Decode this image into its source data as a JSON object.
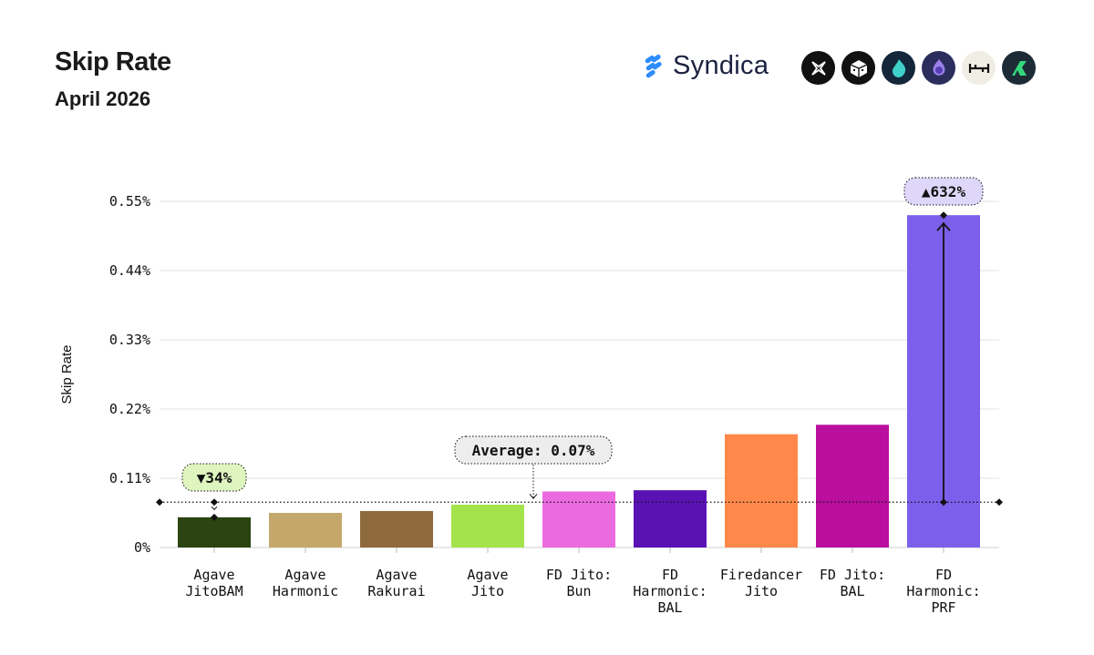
{
  "header": {
    "title": "Skip Rate",
    "subtitle": "April 2026",
    "brand": "Syndica"
  },
  "logos": [
    {
      "icon": "x-star-icon",
      "bg": "#111111"
    },
    {
      "icon": "cube-icon",
      "bg": "#111111"
    },
    {
      "icon": "flame-icon",
      "bg": "#14263a"
    },
    {
      "icon": "crystal-icon",
      "bg": "#2b2d5c"
    },
    {
      "icon": "h-mark-icon",
      "bg": "#efede4"
    },
    {
      "icon": "r-mark-icon",
      "bg": "#1c2b36"
    }
  ],
  "annotations": {
    "average_label": "Average: 0.07%",
    "low_label": "▼34%",
    "high_label": "▲632%"
  },
  "chart_data": {
    "type": "bar",
    "ylabel": "Skip Rate",
    "ylim": [
      0,
      0.55
    ],
    "yticks": [
      0,
      0.11,
      0.22,
      0.33,
      0.44,
      0.55
    ],
    "ytick_labels": [
      "0%",
      "0.11%",
      "0.22%",
      "0.33%",
      "0.44%",
      "0.55%"
    ],
    "average": 0.072,
    "categories": [
      [
        "Agave",
        "JitoBAM"
      ],
      [
        "Agave",
        "Harmonic"
      ],
      [
        "Agave",
        "Rakurai"
      ],
      [
        "Agave",
        "Jito"
      ],
      [
        "FD Jito:",
        "Bun"
      ],
      [
        "FD",
        "Harmonic:",
        "BAL"
      ],
      [
        "Firedancer",
        "Jito"
      ],
      [
        "FD Jito:",
        "BAL"
      ],
      [
        "FD",
        "Harmonic:",
        "PRF"
      ]
    ],
    "values": [
      0.048,
      0.055,
      0.058,
      0.068,
      0.089,
      0.091,
      0.18,
      0.195,
      0.528
    ],
    "colors": [
      "#2b4411",
      "#c4a76a",
      "#8e6a3c",
      "#a3e44c",
      "#ec6adf",
      "#5a12b4",
      "#ff884a",
      "#b90e9e",
      "#7c5fea"
    ],
    "grid": true
  }
}
